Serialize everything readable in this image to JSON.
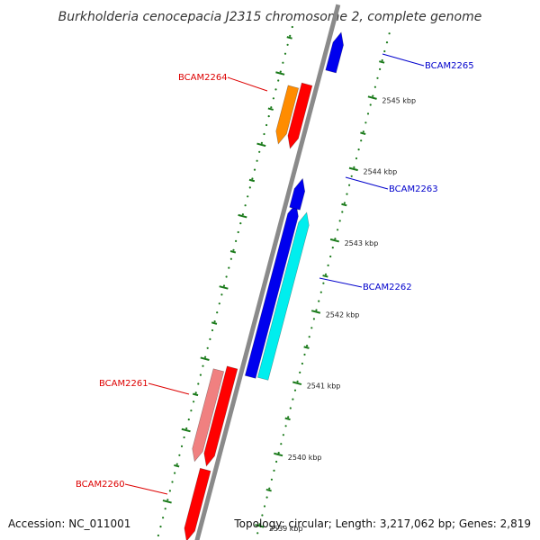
{
  "title": "Burkholderia cenocepacia J2315 chromosome 2, complete genome",
  "footer": {
    "accession": "Accession: NC_011001",
    "summary": "Topology: circular; Length: 3,217,062 bp; Genes: 2,819"
  },
  "colors": {
    "backbone": "#8a8a8a",
    "tick": "#1a7a1a",
    "label_reverse": "#dd0000",
    "label_forward": "#0000cc"
  },
  "scale": {
    "unit": "kbp",
    "ticks": [
      {
        "value": 2539,
        "label": "2539 kbp"
      },
      {
        "value": 2540,
        "label": "2540 kbp"
      },
      {
        "value": 2541,
        "label": "2541 kbp"
      },
      {
        "value": 2542,
        "label": "2542 kbp"
      },
      {
        "value": 2543,
        "label": "2543 kbp"
      },
      {
        "value": 2544,
        "label": "2544 kbp"
      },
      {
        "value": 2545,
        "label": "2545 kbp"
      }
    ]
  },
  "genes": [
    {
      "id": "BCAM2260",
      "strand": "reverse",
      "start": 2538.55,
      "end": 2539.55,
      "color": "#ff0000",
      "track": "inner"
    },
    {
      "id": "BCAM2261",
      "strand": "reverse",
      "start": 2539.6,
      "end": 2540.98,
      "color": "#ff0000",
      "track": "inner",
      "feature_color": "#f08080"
    },
    {
      "id": "BCAM2262",
      "strand": "forward",
      "start": 2540.92,
      "end": 2543.35,
      "color": "#0000ee",
      "track": "inner",
      "feature_color": "#00eeee"
    },
    {
      "id": "BCAM2263",
      "strand": "forward",
      "start": 2543.28,
      "end": 2543.7,
      "color": "#0000ee",
      "track": "inner"
    },
    {
      "id": "BCAM2264",
      "strand": "reverse",
      "start": 2544.05,
      "end": 2544.95,
      "color": "#ff0000",
      "track": "inner",
      "feature_color": "#ff8c00"
    },
    {
      "id": "BCAM2265",
      "strand": "forward",
      "start": 2545.2,
      "end": 2545.75,
      "color": "#0000ee",
      "track": "inner"
    }
  ]
}
